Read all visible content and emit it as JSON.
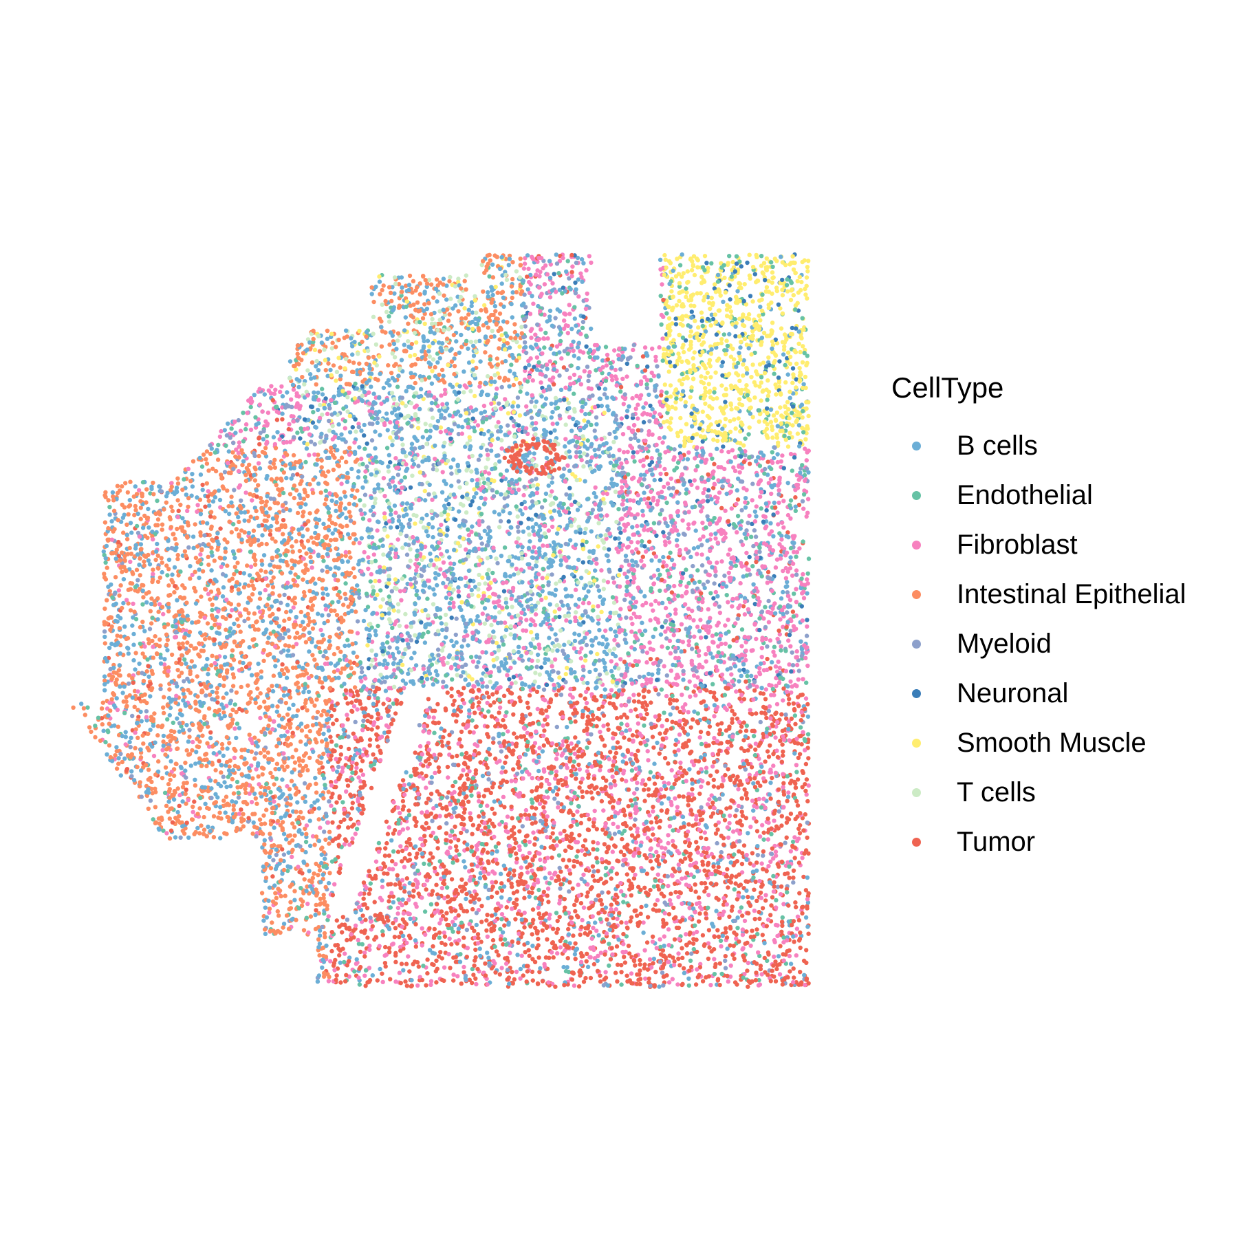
{
  "chart_data": {
    "type": "scatter",
    "title": "",
    "xlabel": "",
    "ylabel": "",
    "grid": false,
    "legend_position": "right",
    "legend_title": "CellType",
    "series": [
      {
        "name": "B cells",
        "color": "#6BAED6"
      },
      {
        "name": "Endothelial",
        "color": "#66C2A5"
      },
      {
        "name": "Fibroblast",
        "color": "#F781BF"
      },
      {
        "name": "Intestinal Epithelial",
        "color": "#FC8D62"
      },
      {
        "name": "Myeloid",
        "color": "#8DA0CB"
      },
      {
        "name": "Neuronal",
        "color": "#3A7DB8"
      },
      {
        "name": "Smooth Muscle",
        "color": "#FFED6F"
      },
      {
        "name": "T cells",
        "color": "#CCEBC5"
      },
      {
        "name": "Tumor",
        "color": "#EF6351"
      }
    ]
  }
}
